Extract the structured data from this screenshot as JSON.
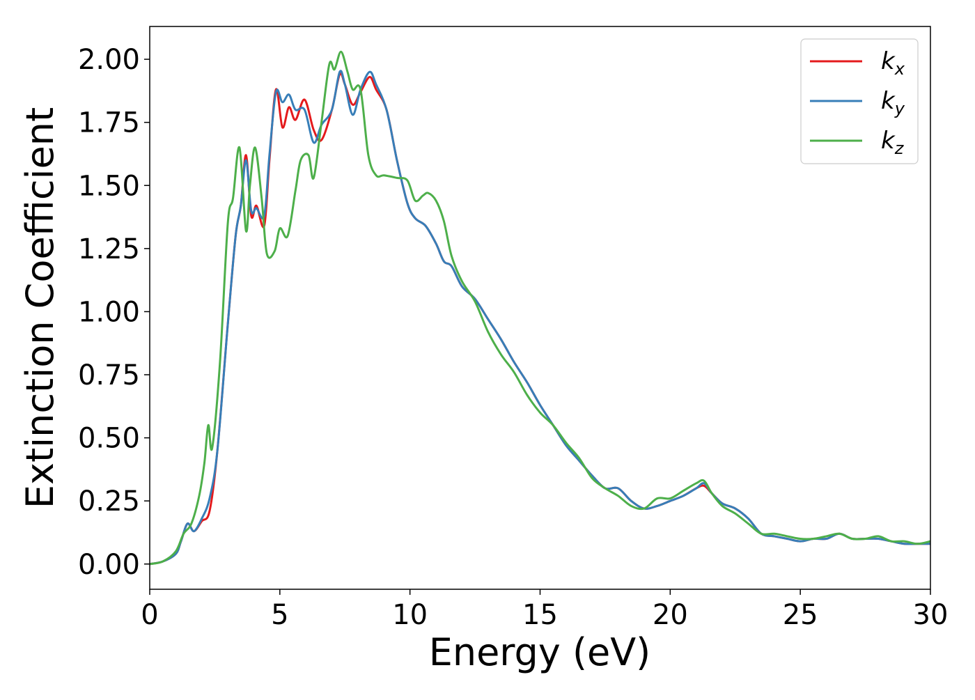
{
  "chart_data": {
    "type": "line",
    "title": "",
    "xlabel": "Energy (eV)",
    "ylabel": "Extinction Coefficient",
    "xlim": [
      0,
      30
    ],
    "ylim": [
      -0.1,
      2.13
    ],
    "xticks": [
      0,
      5,
      10,
      15,
      20,
      25,
      30
    ],
    "yticks": [
      0.0,
      0.25,
      0.5,
      0.75,
      1.0,
      1.25,
      1.5,
      1.75,
      2.0
    ],
    "ytick_labels": [
      "0.00",
      "0.25",
      "0.50",
      "0.75",
      "1.00",
      "1.25",
      "1.50",
      "1.75",
      "2.00"
    ],
    "grid": false,
    "legend_position": "top-right",
    "series": [
      {
        "name": "k_x",
        "label_main": "k",
        "label_sub": "x",
        "color": "#e41a1c",
        "x": [
          0,
          0.5,
          1.0,
          1.2,
          1.45,
          1.7,
          2.0,
          2.3,
          2.6,
          3.0,
          3.3,
          3.5,
          3.7,
          3.9,
          4.1,
          4.4,
          4.6,
          4.85,
          5.1,
          5.35,
          5.6,
          5.95,
          6.3,
          6.6,
          7.0,
          7.3,
          7.5,
          7.8,
          8.1,
          8.45,
          8.7,
          9.1,
          9.5,
          9.9,
          10.2,
          10.6,
          11.0,
          11.3,
          11.6,
          12.0,
          12.5,
          13.0,
          13.5,
          14.0,
          14.5,
          15.0,
          15.5,
          16.0,
          16.5,
          17.0,
          17.5,
          18.0,
          18.5,
          19.0,
          19.5,
          20.0,
          20.5,
          21.0,
          21.3,
          21.6,
          22.0,
          22.5,
          23.0,
          23.5,
          24.0,
          24.5,
          25.0,
          25.5,
          26.0,
          26.5,
          27.0,
          27.5,
          28.0,
          28.5,
          29.0,
          29.5,
          30.0
        ],
        "y": [
          0.0,
          0.01,
          0.04,
          0.09,
          0.16,
          0.13,
          0.17,
          0.21,
          0.45,
          0.95,
          1.3,
          1.42,
          1.62,
          1.38,
          1.42,
          1.34,
          1.6,
          1.88,
          1.73,
          1.81,
          1.76,
          1.84,
          1.72,
          1.68,
          1.8,
          1.94,
          1.9,
          1.82,
          1.87,
          1.93,
          1.88,
          1.8,
          1.6,
          1.43,
          1.37,
          1.34,
          1.27,
          1.2,
          1.18,
          1.1,
          1.05,
          0.97,
          0.89,
          0.8,
          0.72,
          0.63,
          0.55,
          0.47,
          0.41,
          0.35,
          0.3,
          0.3,
          0.25,
          0.22,
          0.23,
          0.25,
          0.27,
          0.3,
          0.31,
          0.28,
          0.24,
          0.22,
          0.18,
          0.12,
          0.11,
          0.1,
          0.09,
          0.1,
          0.1,
          0.12,
          0.1,
          0.1,
          0.1,
          0.09,
          0.08,
          0.08,
          0.08
        ]
      },
      {
        "name": "k_y",
        "label_main": "k",
        "label_sub": "y",
        "color": "#377eb8",
        "x": [
          0,
          0.5,
          1.0,
          1.2,
          1.45,
          1.7,
          2.0,
          2.3,
          2.6,
          3.0,
          3.3,
          3.5,
          3.7,
          3.9,
          4.1,
          4.4,
          4.6,
          4.85,
          5.1,
          5.35,
          5.6,
          5.95,
          6.3,
          6.6,
          7.0,
          7.3,
          7.5,
          7.8,
          8.1,
          8.45,
          8.7,
          9.1,
          9.5,
          9.9,
          10.2,
          10.6,
          11.0,
          11.3,
          11.6,
          12.0,
          12.5,
          13.0,
          13.5,
          14.0,
          14.5,
          15.0,
          15.5,
          16.0,
          16.5,
          17.0,
          17.5,
          18.0,
          18.5,
          19.0,
          19.5,
          20.0,
          20.5,
          21.0,
          21.3,
          21.6,
          22.0,
          22.5,
          23.0,
          23.5,
          24.0,
          24.5,
          25.0,
          25.5,
          26.0,
          26.5,
          27.0,
          27.5,
          28.0,
          28.5,
          29.0,
          29.5,
          30.0
        ],
        "y": [
          0.0,
          0.01,
          0.04,
          0.09,
          0.16,
          0.13,
          0.18,
          0.26,
          0.45,
          0.95,
          1.3,
          1.42,
          1.6,
          1.4,
          1.41,
          1.38,
          1.62,
          1.87,
          1.83,
          1.86,
          1.8,
          1.8,
          1.67,
          1.74,
          1.8,
          1.95,
          1.9,
          1.78,
          1.88,
          1.95,
          1.9,
          1.8,
          1.6,
          1.43,
          1.37,
          1.34,
          1.27,
          1.2,
          1.18,
          1.1,
          1.05,
          0.97,
          0.89,
          0.8,
          0.72,
          0.63,
          0.55,
          0.47,
          0.41,
          0.35,
          0.3,
          0.3,
          0.25,
          0.22,
          0.23,
          0.25,
          0.27,
          0.3,
          0.32,
          0.28,
          0.24,
          0.22,
          0.18,
          0.12,
          0.11,
          0.1,
          0.09,
          0.1,
          0.1,
          0.12,
          0.1,
          0.1,
          0.1,
          0.09,
          0.08,
          0.08,
          0.08
        ]
      },
      {
        "name": "k_z",
        "label_main": "k",
        "label_sub": "z",
        "color": "#4daf4a",
        "x": [
          0,
          0.5,
          1.0,
          1.3,
          1.6,
          1.9,
          2.1,
          2.25,
          2.4,
          2.7,
          3.0,
          3.2,
          3.45,
          3.7,
          3.85,
          4.05,
          4.3,
          4.5,
          4.8,
          5.0,
          5.3,
          5.6,
          5.8,
          6.1,
          6.3,
          6.6,
          6.9,
          7.1,
          7.35,
          7.6,
          7.8,
          8.1,
          8.4,
          8.7,
          9.0,
          9.5,
          9.9,
          10.2,
          10.5,
          10.7,
          11.0,
          11.3,
          11.6,
          12.0,
          12.5,
          13.0,
          13.5,
          14.0,
          14.5,
          15.0,
          15.5,
          16.0,
          16.5,
          17.0,
          17.5,
          18.0,
          18.5,
          19.0,
          19.5,
          20.0,
          20.5,
          21.0,
          21.3,
          21.6,
          22.0,
          22.5,
          23.0,
          23.5,
          24.0,
          24.5,
          25.0,
          25.5,
          26.0,
          26.5,
          27.0,
          27.5,
          28.0,
          28.5,
          29.0,
          29.5,
          30.0
        ],
        "y": [
          0.0,
          0.01,
          0.05,
          0.12,
          0.16,
          0.27,
          0.4,
          0.55,
          0.46,
          0.8,
          1.35,
          1.45,
          1.65,
          1.32,
          1.5,
          1.65,
          1.45,
          1.23,
          1.24,
          1.33,
          1.3,
          1.48,
          1.6,
          1.62,
          1.53,
          1.75,
          1.98,
          1.96,
          2.03,
          1.95,
          1.88,
          1.88,
          1.62,
          1.54,
          1.54,
          1.53,
          1.52,
          1.44,
          1.46,
          1.47,
          1.44,
          1.36,
          1.22,
          1.12,
          1.04,
          0.92,
          0.83,
          0.76,
          0.67,
          0.6,
          0.55,
          0.48,
          0.42,
          0.34,
          0.3,
          0.27,
          0.23,
          0.22,
          0.26,
          0.26,
          0.29,
          0.32,
          0.33,
          0.28,
          0.23,
          0.2,
          0.16,
          0.12,
          0.12,
          0.11,
          0.1,
          0.1,
          0.11,
          0.12,
          0.1,
          0.1,
          0.11,
          0.09,
          0.09,
          0.08,
          0.09
        ]
      }
    ]
  }
}
